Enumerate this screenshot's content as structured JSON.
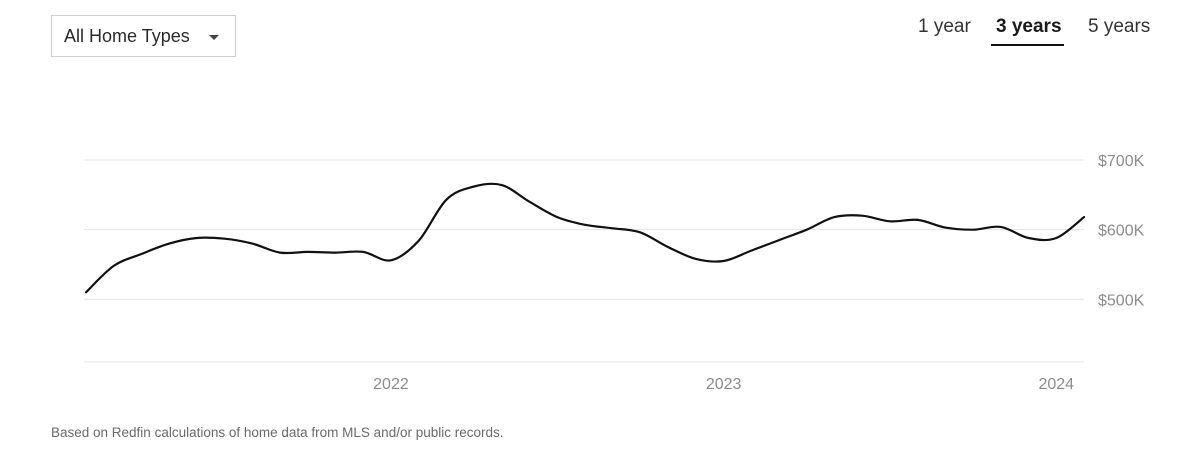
{
  "filter": {
    "label": "All Home Types",
    "icon": "caret-down-icon"
  },
  "range_tabs": [
    {
      "label": "1 year",
      "selected": false
    },
    {
      "label": "3 years",
      "selected": true
    },
    {
      "label": "5 years",
      "selected": false
    }
  ],
  "chart_data": {
    "type": "line",
    "title": "",
    "xlabel": "",
    "ylabel": "",
    "x_ticks": [
      "2022",
      "2023",
      "2024"
    ],
    "y_ticks": [
      "$500K",
      "$600K",
      "$700K"
    ],
    "xlim": [
      "2021-02",
      "2024-02"
    ],
    "ylim": [
      410000,
      700000
    ],
    "grid": true,
    "line_color": "#111111",
    "series": [
      {
        "x": [
          "2021-02",
          "2021-03",
          "2021-04",
          "2021-05",
          "2021-06",
          "2021-07",
          "2021-08",
          "2021-09",
          "2021-10",
          "2021-11",
          "2021-12",
          "2022-01",
          "2022-02",
          "2022-03",
          "2022-04",
          "2022-05",
          "2022-06",
          "2022-07",
          "2022-08",
          "2022-09",
          "2022-10",
          "2022-11",
          "2022-12",
          "2023-01",
          "2023-02",
          "2023-03",
          "2023-04",
          "2023-05",
          "2023-06",
          "2023-07",
          "2023-08",
          "2023-09",
          "2023-10",
          "2023-11",
          "2023-12",
          "2024-01",
          "2024-02"
        ],
        "values": [
          510000,
          548000,
          565000,
          580000,
          588000,
          587000,
          580000,
          567000,
          568000,
          567000,
          568000,
          556000,
          584000,
          643000,
          662000,
          664000,
          640000,
          618000,
          607000,
          602000,
          596000,
          575000,
          558000,
          555000,
          570000,
          585000,
          600000,
          618000,
          620000,
          612000,
          614000,
          603000,
          600000,
          604000,
          588000,
          588000,
          618000
        ]
      }
    ]
  },
  "footnote": "Based on Redfin calculations of home data from MLS and/or public records."
}
